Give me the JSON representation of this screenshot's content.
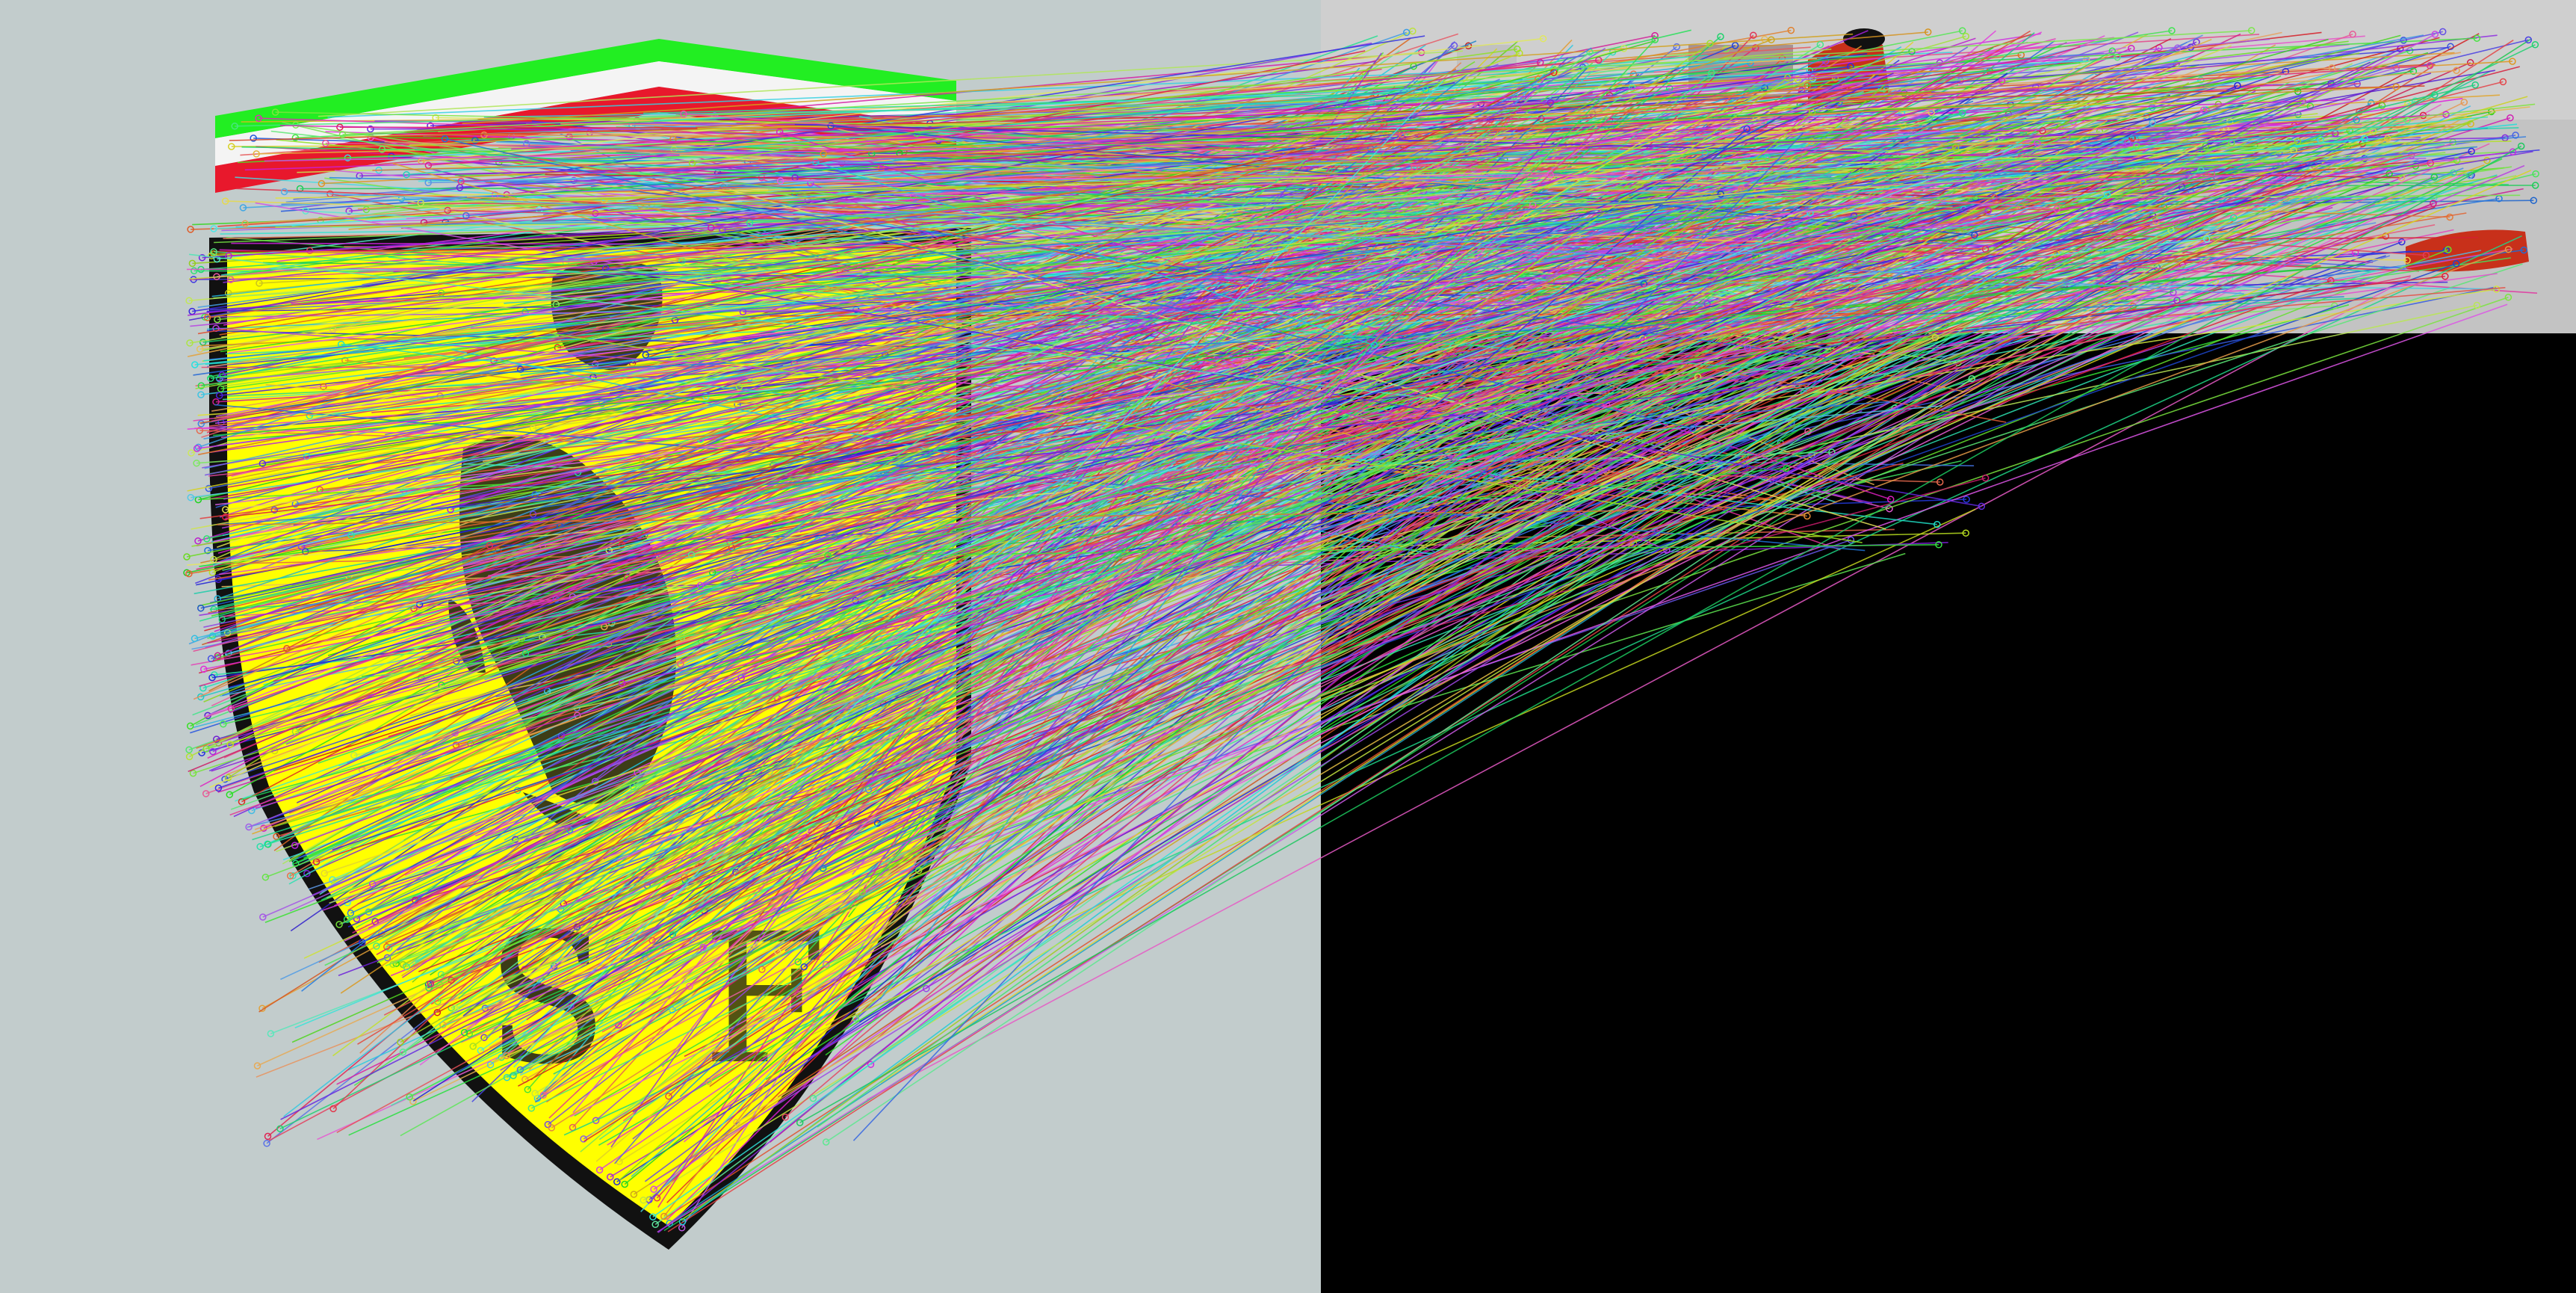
{
  "image": {
    "description_free": true,
    "panels": [
      {
        "name": "left-panel",
        "background": "#c2cccc",
        "subject": "shield-logo"
      },
      {
        "name": "right-panel",
        "background_top": "#d0d0d0",
        "background_bottom": "#000000",
        "subject": "red-car"
      }
    ],
    "shield": {
      "stripe_colors": [
        "#22ee22",
        "#ffffff",
        "#e8182c"
      ],
      "field_color": "#ffff00",
      "border_color": "#111111",
      "emblem_color": "#1a1a1a",
      "letters": "S F"
    },
    "car": {
      "color": "#c8301a"
    },
    "match_lines": {
      "count": 1400,
      "seed": 7
    }
  }
}
